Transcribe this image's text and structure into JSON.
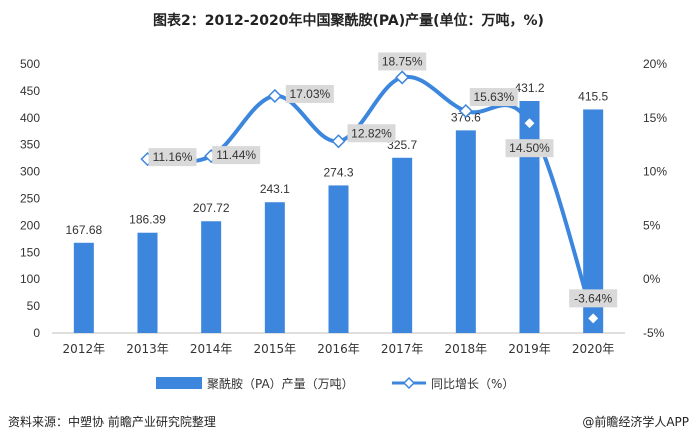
{
  "title": "图表2：2012-2020年中国聚酰胺(PA)产量(单位：万吨，%)",
  "footer": {
    "source": "资料来源：中塑协 前瞻产业研究院整理",
    "brand": "@前瞻经济学人APP"
  },
  "colors": {
    "bar": "#3d86de",
    "line": "#3d86de",
    "marker_fill": "#ffffff",
    "label_box": "#d9d9d9"
  },
  "chart_data": {
    "type": "bar",
    "categories": [
      "2012年",
      "2013年",
      "2014年",
      "2015年",
      "2016年",
      "2017年",
      "2018年",
      "2019年",
      "2020年"
    ],
    "series": [
      {
        "name": "聚酰胺（PA）产量（万吨）",
        "type": "bar",
        "axis": "left",
        "values": [
          167.68,
          186.39,
          207.72,
          243.1,
          274.3,
          325.7,
          376.6,
          431.2,
          415.5
        ],
        "labels": [
          "167.68",
          "186.39",
          "207.72",
          "243.1",
          "274.3",
          "325.7",
          "376.6",
          "431.2",
          "415.5"
        ]
      },
      {
        "name": "同比增长（%）",
        "type": "line",
        "axis": "right",
        "values": [
          null,
          11.16,
          11.44,
          17.03,
          12.82,
          18.75,
          15.63,
          14.5,
          -3.64
        ],
        "labels": [
          "",
          "11.16%",
          "11.44%",
          "17.03%",
          "12.82%",
          "18.75%",
          "15.63%",
          "14.50%",
          "-3.64%"
        ]
      }
    ],
    "y_left": {
      "min": 0,
      "max": 500,
      "step": 50,
      "tick_labels": [
        "0",
        "50",
        "100",
        "150",
        "200",
        "250",
        "300",
        "350",
        "400",
        "450",
        "500"
      ]
    },
    "y_right": {
      "min": -5,
      "max": 20,
      "step": 5,
      "tick_labels": [
        "-5%",
        "0%",
        "5%",
        "10%",
        "15%",
        "20%"
      ]
    },
    "grid": false,
    "legend_position": "bottom"
  }
}
